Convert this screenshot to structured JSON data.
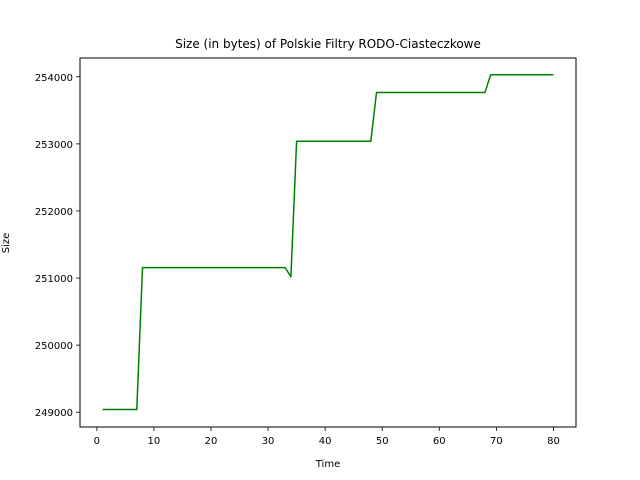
{
  "chart_data": {
    "type": "line",
    "title": "Size (in bytes) of Polskie Filtry RODO-Ciasteczkowe",
    "xlabel": "Time",
    "ylabel": "Size",
    "xlim": [
      -2.95,
      83.95
    ],
    "ylim": [
      248780,
      254280
    ],
    "xticks": [
      0,
      10,
      20,
      30,
      40,
      50,
      60,
      70,
      80
    ],
    "yticks": [
      249000,
      250000,
      251000,
      252000,
      253000,
      254000
    ],
    "grid": false,
    "legend": "none",
    "series": [
      {
        "color": "#008000",
        "x": [
          1,
          7,
          8,
          33,
          34,
          35,
          48,
          49,
          68,
          69,
          80
        ],
        "y": [
          249040,
          249040,
          251155,
          251155,
          251020,
          253040,
          253040,
          253765,
          253765,
          254030,
          254030
        ]
      }
    ]
  }
}
